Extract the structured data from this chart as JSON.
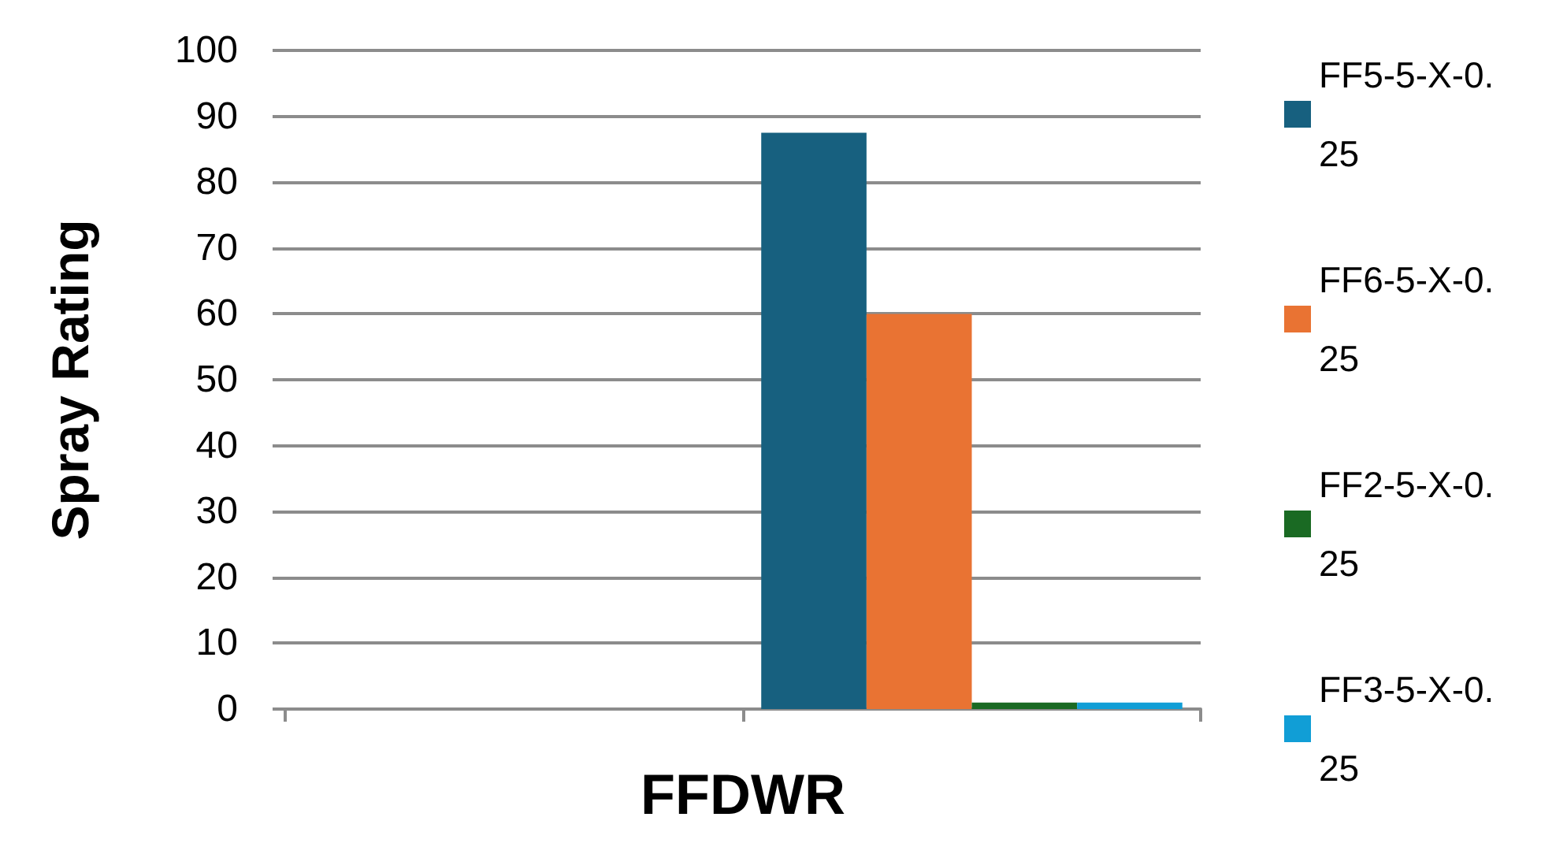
{
  "chart_data": {
    "type": "bar",
    "xlabel": "FFDWR",
    "ylabel": "Spray Rating",
    "categories": [
      null,
      null
    ],
    "series": [
      {
        "name": "FF5-5-X-0.25",
        "color": "#17607f",
        "values": [
          null,
          87.5
        ]
      },
      {
        "name": "FF6-5-X-0.25",
        "color": "#e97333",
        "values": [
          null,
          60
        ]
      },
      {
        "name": "FF2-5-X-0.25",
        "color": "#1a6a23",
        "values": [
          null,
          1
        ]
      },
      {
        "name": "FF3-5-X-0.25",
        "color": "#119ed6",
        "values": [
          null,
          1
        ]
      }
    ],
    "ylim": [
      0,
      100
    ],
    "yticks": [
      0,
      10,
      20,
      30,
      40,
      50,
      60,
      70,
      80,
      90,
      100
    ],
    "grid": "y",
    "legend": "right"
  }
}
